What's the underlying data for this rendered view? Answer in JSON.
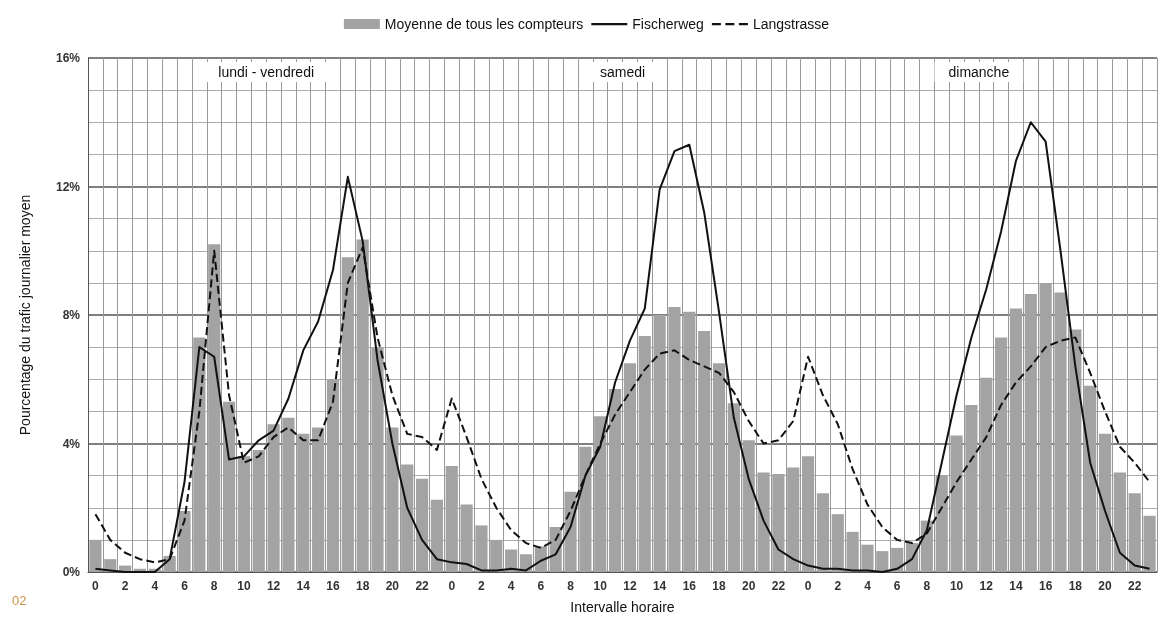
{
  "chart_data": {
    "type": "bar",
    "xlabel": "Intervalle horaire",
    "ylabel": "Pourcentage du trafic journalier moyen",
    "categories": [
      "0",
      null,
      "2",
      null,
      "4",
      null,
      "6",
      null,
      "8",
      null,
      "10",
      null,
      "12",
      null,
      "14",
      null,
      "16",
      null,
      "18",
      null,
      "20",
      null,
      "22",
      null,
      "0",
      null,
      "2",
      null,
      "4",
      null,
      "6",
      null,
      "8",
      null,
      "10",
      null,
      "12",
      null,
      "14",
      null,
      "16",
      null,
      "18",
      null,
      "20",
      null,
      "22",
      null,
      "0",
      null,
      "2",
      null,
      "4",
      null,
      "6",
      null,
      "8",
      null,
      "10",
      null,
      "12",
      null,
      "14",
      null,
      "16",
      null,
      "18",
      null,
      "20",
      null,
      "22",
      null
    ],
    "series": [
      {
        "name": "Moyenne de tous les compteurs",
        "color": "#a3a3a3",
        "values": [
          1.0,
          0.4,
          0.2,
          0.1,
          0.1,
          0.5,
          1.9,
          7.3,
          10.2,
          5.3,
          3.6,
          3.8,
          4.6,
          4.8,
          4.3,
          4.5,
          6.0,
          9.8,
          10.35,
          7.0,
          4.5,
          3.35,
          2.9,
          2.25,
          3.3,
          2.1,
          1.45,
          1.0,
          0.7,
          0.55,
          0.8,
          1.4,
          2.5,
          3.9,
          4.85,
          5.7,
          6.5,
          7.35,
          8.0,
          8.25,
          8.1,
          7.5,
          6.5,
          5.25,
          4.1,
          3.1,
          3.05,
          3.25,
          3.6,
          2.45,
          1.8,
          1.25,
          0.85,
          0.65,
          0.75,
          0.9,
          1.6,
          3.0,
          4.25,
          5.2,
          6.05,
          7.3,
          8.2,
          8.65,
          9.0,
          8.7,
          7.55,
          5.8,
          4.3,
          3.1,
          2.45,
          1.75
        ]
      },
      {
        "name": "Fischerweg",
        "type": "line",
        "color": "#111111",
        "line_style": "solid",
        "values": [
          0.1,
          0.05,
          0.0,
          0.0,
          0.0,
          0.4,
          2.8,
          7.0,
          6.7,
          3.5,
          3.6,
          4.1,
          4.4,
          5.4,
          6.9,
          7.8,
          9.4,
          12.3,
          10.3,
          6.6,
          4.0,
          2.0,
          1.0,
          0.4,
          0.3,
          0.25,
          0.05,
          0.05,
          0.1,
          0.05,
          0.35,
          0.55,
          1.4,
          3.0,
          3.9,
          5.9,
          7.2,
          8.2,
          11.9,
          13.1,
          13.3,
          11.2,
          8.1,
          4.8,
          2.9,
          1.6,
          0.7,
          0.4,
          0.2,
          0.1,
          0.1,
          0.05,
          0.05,
          0.0,
          0.1,
          0.4,
          1.3,
          3.4,
          5.5,
          7.3,
          8.8,
          10.6,
          12.8,
          14.0,
          13.4,
          10.0,
          6.4,
          3.4,
          1.9,
          0.6,
          0.2,
          0.1
        ]
      },
      {
        "name": "Langstrasse",
        "type": "line",
        "color": "#111111",
        "line_style": "dashed",
        "values": [
          1.8,
          1.0,
          0.6,
          0.4,
          0.3,
          0.4,
          1.6,
          5.0,
          10.0,
          5.5,
          3.4,
          3.6,
          4.2,
          4.5,
          4.1,
          4.1,
          5.3,
          9.0,
          10.1,
          7.3,
          5.5,
          4.3,
          4.2,
          3.8,
          5.4,
          4.2,
          2.9,
          2.0,
          1.3,
          0.9,
          0.75,
          1.0,
          1.9,
          3.0,
          4.0,
          4.9,
          5.6,
          6.3,
          6.8,
          6.9,
          6.6,
          6.4,
          6.2,
          5.6,
          4.7,
          4.0,
          4.1,
          4.7,
          6.7,
          5.5,
          4.6,
          3.2,
          2.1,
          1.4,
          1.0,
          0.9,
          1.2,
          2.0,
          2.8,
          3.5,
          4.2,
          5.2,
          5.9,
          6.4,
          7.0,
          7.2,
          7.3,
          6.2,
          5.0,
          3.9,
          3.4,
          2.8
        ]
      }
    ],
    "ylim": [
      0,
      16
    ],
    "yticks": [
      {
        "value": 0,
        "label": "0%"
      },
      {
        "value": 4,
        "label": "4%"
      },
      {
        "value": 8,
        "label": "8%"
      },
      {
        "value": 12,
        "label": "12%"
      },
      {
        "value": 16,
        "label": "16%"
      }
    ],
    "grid": true,
    "legend": "top",
    "marker": "none",
    "annotations": [
      "lundi - vendredi",
      "samedi",
      "dimanche",
      "02"
    ]
  }
}
